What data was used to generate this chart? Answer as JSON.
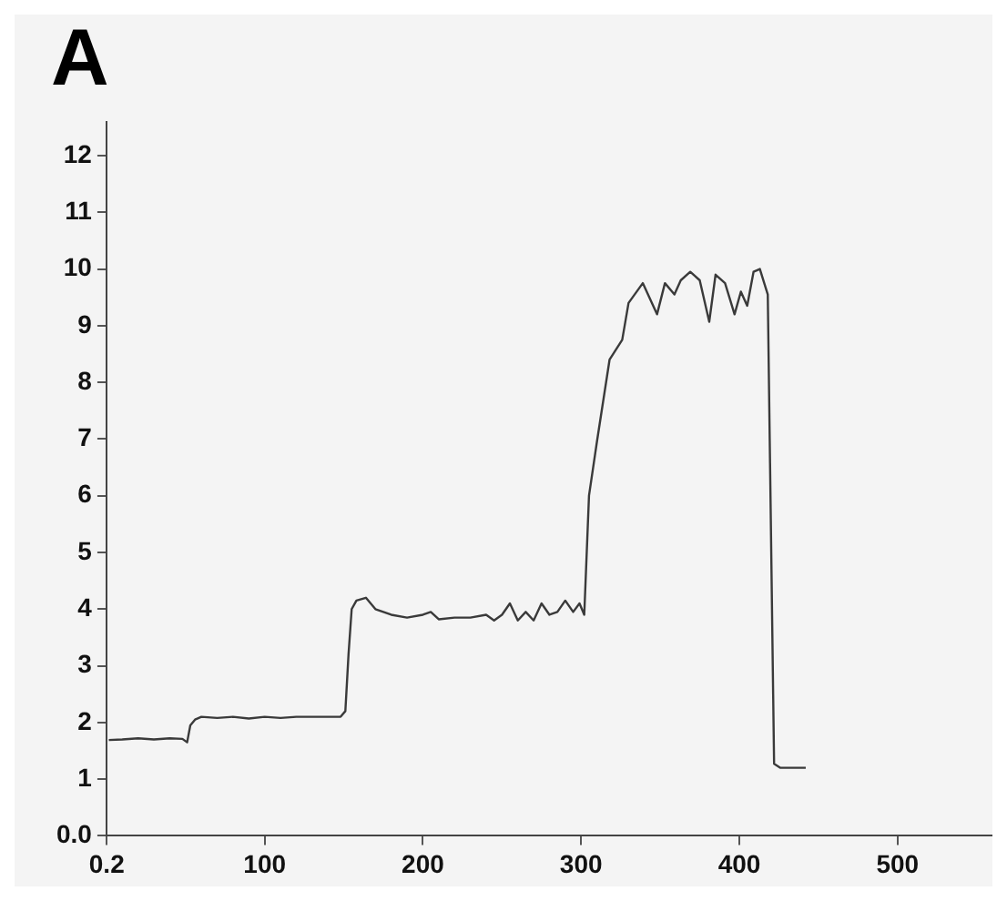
{
  "chart_data": {
    "type": "line",
    "title": "A",
    "x": [
      1.5,
      10,
      20,
      30,
      40,
      48,
      51,
      53,
      56,
      60,
      70,
      80,
      90,
      100,
      110,
      120,
      130,
      140,
      148,
      151,
      153,
      155,
      158,
      164,
      170,
      175,
      180,
      190,
      200,
      205,
      210,
      220,
      230,
      240,
      245,
      250,
      255,
      260,
      265,
      270,
      275,
      280,
      285,
      290,
      295,
      299,
      302,
      305,
      310,
      318,
      326,
      330,
      339,
      348,
      353,
      359,
      363,
      369,
      375,
      381,
      385,
      391,
      397,
      401,
      405,
      409,
      413,
      418,
      422,
      426,
      442
    ],
    "values": [
      1.69,
      1.7,
      1.72,
      1.7,
      1.72,
      1.71,
      1.65,
      1.95,
      2.05,
      2.1,
      2.08,
      2.1,
      2.07,
      2.1,
      2.08,
      2.1,
      2.1,
      2.1,
      2.1,
      2.2,
      3.2,
      4.0,
      4.15,
      4.2,
      4.0,
      3.95,
      3.9,
      3.85,
      3.9,
      3.95,
      3.82,
      3.85,
      3.85,
      3.9,
      3.8,
      3.9,
      4.1,
      3.8,
      3.95,
      3.8,
      4.1,
      3.9,
      3.95,
      4.15,
      3.95,
      4.1,
      3.9,
      6.0,
      6.95,
      8.4,
      8.75,
      9.4,
      9.75,
      9.2,
      9.75,
      9.55,
      9.8,
      9.95,
      9.8,
      9.07,
      9.9,
      9.75,
      9.2,
      9.6,
      9.35,
      9.95,
      10.0,
      9.55,
      1.27,
      1.2,
      1.2
    ],
    "color": "#3a3a3a",
    "marker": "none",
    "line_style": "solid",
    "grid": false,
    "legend": false,
    "xlim": [
      0,
      560
    ],
    "xticks": [
      0.2,
      100,
      200,
      300,
      400,
      500
    ],
    "ylim": [
      0,
      12.6
    ],
    "yticks": [
      {
        "value": 0,
        "label": "0.0"
      },
      1,
      2,
      3,
      4,
      5,
      6,
      7,
      8,
      9,
      10,
      11,
      12
    ]
  }
}
